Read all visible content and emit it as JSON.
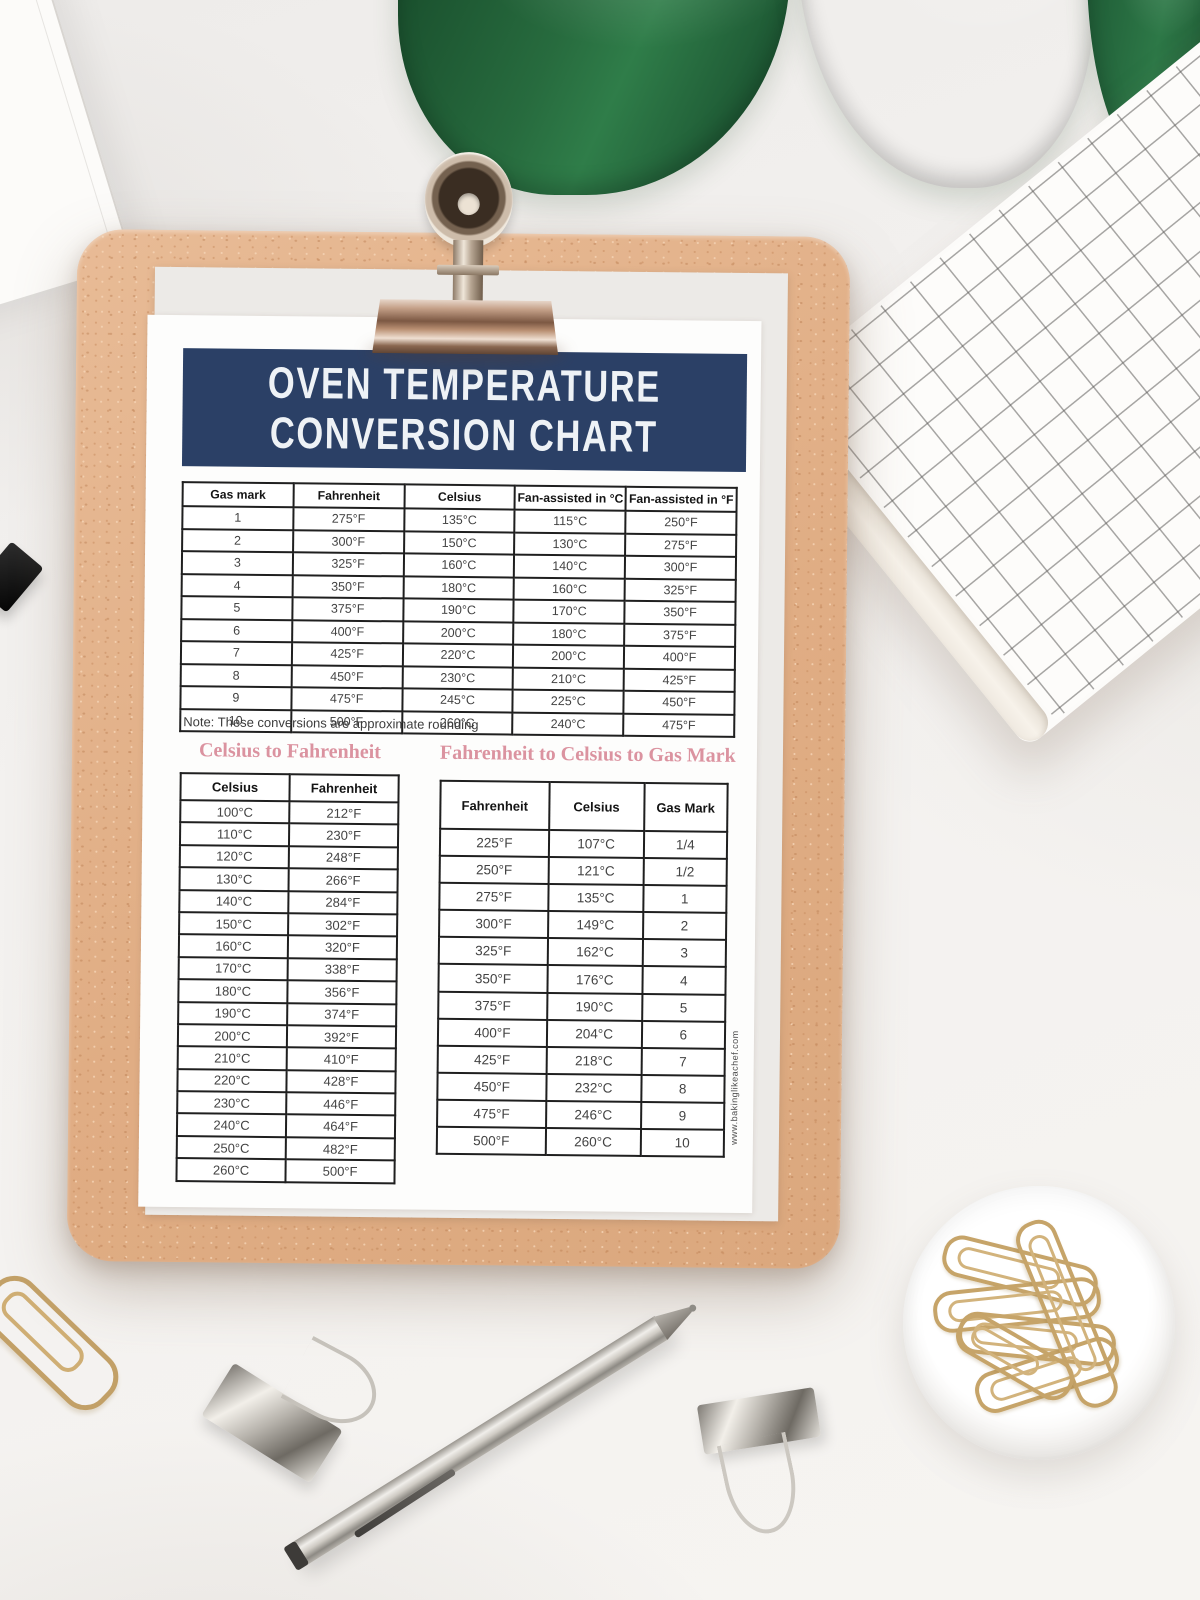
{
  "colors": {
    "banner_navy": "#2b4066",
    "heading_pink": "#db93a0",
    "cork_tan": "#e3b28b",
    "leaf_green": "#276b3e",
    "gold": "#c6a469",
    "desk": "#f3f1ef"
  },
  "poster": {
    "title_line1": "OVEN TEMPERATURE",
    "title_line2": "CONVERSION CHART",
    "note": "Note: These conversions are approximate rounding",
    "watermark": "www.bakinglikeachef.com",
    "main_table": {
      "headers": [
        "Gas mark",
        "Fahrenheit",
        "Celsius",
        "Fan-assisted in °C",
        "Fan-assisted in °F"
      ],
      "rows": [
        [
          "1",
          "275°F",
          "135°C",
          "115°C",
          "250°F"
        ],
        [
          "2",
          "300°F",
          "150°C",
          "130°C",
          "275°F"
        ],
        [
          "3",
          "325°F",
          "160°C",
          "140°C",
          "300°F"
        ],
        [
          "4",
          "350°F",
          "180°C",
          "160°C",
          "325°F"
        ],
        [
          "5",
          "375°F",
          "190°C",
          "170°C",
          "350°F"
        ],
        [
          "6",
          "400°F",
          "200°C",
          "180°C",
          "375°F"
        ],
        [
          "7",
          "425°F",
          "220°C",
          "200°C",
          "400°F"
        ],
        [
          "8",
          "450°F",
          "230°C",
          "210°C",
          "425°F"
        ],
        [
          "9",
          "475°F",
          "245°C",
          "225°C",
          "450°F"
        ],
        [
          "10",
          "500°F",
          "260°C",
          "240°C",
          "475°F"
        ]
      ]
    },
    "celsius_to_fahrenheit": {
      "heading": "Celsius to Fahrenheit",
      "headers": [
        "Celsius",
        "Fahrenheit"
      ],
      "rows": [
        [
          "100°C",
          "212°F"
        ],
        [
          "110°C",
          "230°F"
        ],
        [
          "120°C",
          "248°F"
        ],
        [
          "130°C",
          "266°F"
        ],
        [
          "140°C",
          "284°F"
        ],
        [
          "150°C",
          "302°F"
        ],
        [
          "160°C",
          "320°F"
        ],
        [
          "170°C",
          "338°F"
        ],
        [
          "180°C",
          "356°F"
        ],
        [
          "190°C",
          "374°F"
        ],
        [
          "200°C",
          "392°F"
        ],
        [
          "210°C",
          "410°F"
        ],
        [
          "220°C",
          "428°F"
        ],
        [
          "230°C",
          "446°F"
        ],
        [
          "240°C",
          "464°F"
        ],
        [
          "250°C",
          "482°F"
        ],
        [
          "260°C",
          "500°F"
        ]
      ]
    },
    "fahrenheit_to_gas": {
      "heading": "Fahrenheit to Celsius to Gas Mark",
      "headers": [
        "Fahrenheit",
        "Celsius",
        "Gas Mark"
      ],
      "rows": [
        [
          "225°F",
          "107°C",
          "1/4"
        ],
        [
          "250°F",
          "121°C",
          "1/2"
        ],
        [
          "275°F",
          "135°C",
          "1"
        ],
        [
          "300°F",
          "149°C",
          "2"
        ],
        [
          "325°F",
          "162°C",
          "3"
        ],
        [
          "350°F",
          "176°C",
          "4"
        ],
        [
          "375°F",
          "190°C",
          "5"
        ],
        [
          "400°F",
          "204°C",
          "6"
        ],
        [
          "425°F",
          "218°C",
          "7"
        ],
        [
          "450°F",
          "232°C",
          "8"
        ],
        [
          "475°F",
          "246°C",
          "9"
        ],
        [
          "500°F",
          "260°C",
          "10"
        ]
      ]
    }
  }
}
